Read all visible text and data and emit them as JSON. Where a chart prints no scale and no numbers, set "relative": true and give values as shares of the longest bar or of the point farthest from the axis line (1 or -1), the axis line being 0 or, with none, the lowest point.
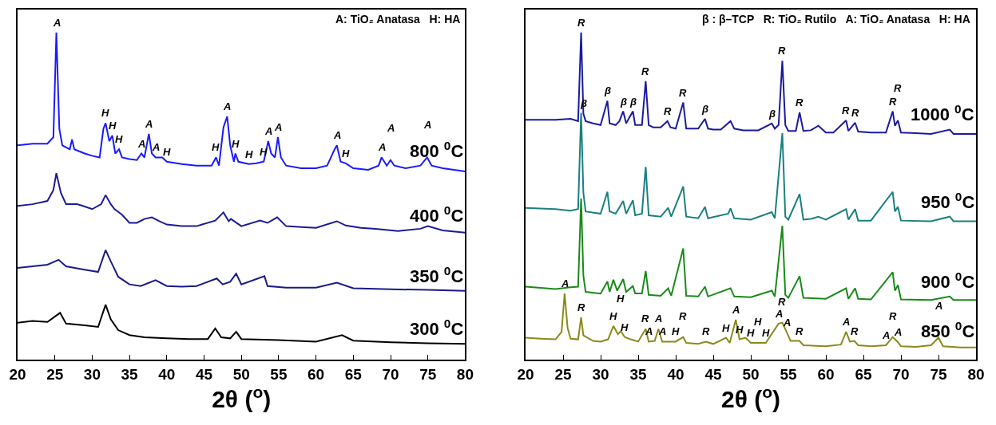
{
  "chart_data": [
    {
      "type": "line",
      "relative": true,
      "xlabel": "2θ ($^{o}$)",
      "xlim": [
        20,
        80
      ],
      "xticks": [
        20,
        25,
        30,
        35,
        40,
        45,
        50,
        55,
        60,
        65,
        70,
        75,
        80
      ],
      "tick_labels": "x",
      "series": [
        {
          "name": "800 $^{0}$C",
          "color": "#1a1aff",
          "x": [
            20,
            22,
            24,
            24.8,
            25.2,
            25.6,
            26,
            27,
            27.3,
            27.6,
            29,
            30,
            31,
            31.5,
            31.8,
            32.3,
            32.7,
            33.1,
            33.6,
            34,
            35,
            36,
            36.6,
            37,
            37.6,
            38,
            38.5,
            39.4,
            40,
            42,
            44,
            46,
            46.6,
            47,
            47.6,
            48.1,
            48.5,
            49,
            49.2,
            49.6,
            51,
            52,
            53,
            53.6,
            54,
            54.5,
            54.9,
            55.3,
            56,
            58,
            60,
            61.5,
            62.5,
            62.8,
            63.3,
            64,
            65,
            67,
            68.4,
            68.8,
            69.5,
            70,
            70.5,
            72,
            74,
            74.9,
            75.5,
            77,
            80
          ],
          "values": [
            0.655,
            0.66,
            0.66,
            0.68,
            1.0,
            0.705,
            0.655,
            0.643,
            0.673,
            0.643,
            0.63,
            0.623,
            0.618,
            0.705,
            0.723,
            0.668,
            0.685,
            0.63,
            0.643,
            0.618,
            0.613,
            0.61,
            0.63,
            0.618,
            0.69,
            0.63,
            0.618,
            0.618,
            0.605,
            0.598,
            0.593,
            0.593,
            0.618,
            0.593,
            0.71,
            0.743,
            0.655,
            0.605,
            0.63,
            0.605,
            0.598,
            0.6,
            0.605,
            0.668,
            0.63,
            0.618,
            0.68,
            0.618,
            0.593,
            0.585,
            0.585,
            0.593,
            0.643,
            0.655,
            0.605,
            0.6,
            0.585,
            0.58,
            0.593,
            0.618,
            0.593,
            0.61,
            0.593,
            0.585,
            0.593,
            0.618,
            0.593,
            0.585,
            0.575
          ]
        },
        {
          "name": "400 $^{0}$C",
          "color": "#1a1a9a",
          "x": [
            20,
            22,
            24,
            24.8,
            25.2,
            25.8,
            26.5,
            28,
            29,
            30,
            31.2,
            31.8,
            32.5,
            33,
            34,
            35,
            36,
            37,
            38,
            39,
            40,
            42,
            44,
            46.5,
            47.6,
            48.3,
            48.6,
            50,
            52.5,
            53.5,
            54.8,
            56,
            58,
            60,
            62.8,
            64,
            66,
            68,
            71,
            74,
            75,
            77,
            80
          ],
          "values": [
            0.47,
            0.475,
            0.485,
            0.518,
            0.57,
            0.51,
            0.475,
            0.475,
            0.468,
            0.46,
            0.475,
            0.503,
            0.475,
            0.46,
            0.443,
            0.418,
            0.418,
            0.43,
            0.435,
            0.423,
            0.413,
            0.408,
            0.408,
            0.425,
            0.45,
            0.423,
            0.43,
            0.408,
            0.425,
            0.418,
            0.435,
            0.408,
            0.405,
            0.403,
            0.423,
            0.41,
            0.403,
            0.4,
            0.393,
            0.4,
            0.408,
            0.395,
            0.388
          ]
        },
        {
          "name": "350 $^{0}$C",
          "color": "#1a1a88",
          "x": [
            20,
            22,
            24,
            25.5,
            26.5,
            29,
            30.8,
            31.8,
            32.5,
            33.5,
            35,
            36.5,
            38.5,
            40,
            42,
            44,
            46.7,
            47.5,
            48.5,
            49.3,
            50,
            53.1,
            53.5,
            56,
            60,
            62.8,
            65,
            70,
            75,
            80
          ],
          "values": [
            0.28,
            0.285,
            0.29,
            0.305,
            0.285,
            0.275,
            0.268,
            0.335,
            0.3,
            0.253,
            0.23,
            0.225,
            0.243,
            0.225,
            0.223,
            0.225,
            0.248,
            0.23,
            0.238,
            0.263,
            0.23,
            0.255,
            0.225,
            0.22,
            0.22,
            0.235,
            0.218,
            0.215,
            0.213,
            0.21
          ]
        },
        {
          "name": "300 $^{0}$C",
          "color": "#000000",
          "x": [
            20,
            22,
            24,
            25.7,
            26.5,
            29,
            30.8,
            31.8,
            32.5,
            33.5,
            35,
            37,
            40,
            43,
            45.5,
            46.5,
            47.3,
            48.5,
            49.3,
            50,
            55,
            60,
            63.5,
            65,
            70,
            75,
            80
          ],
          "values": [
            0.113,
            0.118,
            0.115,
            0.143,
            0.11,
            0.105,
            0.1,
            0.168,
            0.123,
            0.09,
            0.075,
            0.068,
            0.065,
            0.063,
            0.063,
            0.095,
            0.068,
            0.065,
            0.085,
            0.063,
            0.06,
            0.055,
            0.075,
            0.058,
            0.053,
            0.05,
            0.048
          ]
        }
      ],
      "annotations": [
        "A: TiO₂ Anatasa",
        "H: HA",
        {
          "text": "A",
          "x": 25.2,
          "y": 1.0
        },
        {
          "text": "H",
          "x": 31.8,
          "y": 0.723
        },
        {
          "text": "H",
          "x": 32.7,
          "y": 0.685
        },
        {
          "text": "H",
          "x": 33.6,
          "y": 0.643
        },
        {
          "text": "A",
          "x": 36.6,
          "y": 0.63
        },
        {
          "text": "A",
          "x": 37.6,
          "y": 0.69
        },
        {
          "text": "A",
          "x": 38.5,
          "y": 0.618
        },
        {
          "text": "H",
          "x": 40,
          "y": 0.605
        },
        {
          "text": "H",
          "x": 46.6,
          "y": 0.618
        },
        {
          "text": "A",
          "x": 48.1,
          "y": 0.743
        },
        {
          "text": "H",
          "x": 49.2,
          "y": 0.63
        },
        {
          "text": "H",
          "x": 51,
          "y": 0.598
        },
        {
          "text": "H",
          "x": 53,
          "y": 0.605
        },
        {
          "text": "A",
          "x": 53.6,
          "y": 0.668
        },
        {
          "text": "A",
          "x": 54.9,
          "y": 0.68
        },
        {
          "text": "A",
          "x": 62.8,
          "y": 0.655
        },
        {
          "text": "H",
          "x": 64,
          "y": 0.6
        },
        {
          "text": "A",
          "x": 68.8,
          "y": 0.618
        },
        {
          "text": "A",
          "x": 70,
          "y": 0.61
        },
        {
          "text": "A",
          "x": 74.9,
          "y": 0.618
        }
      ]
    },
    {
      "type": "line",
      "relative": true,
      "xlabel": "2θ ($^{o}$)",
      "xlim": [
        20,
        80
      ],
      "xticks": [
        20,
        25,
        30,
        35,
        40,
        45,
        50,
        55,
        60,
        65,
        70,
        75,
        80
      ],
      "tick_labels": "x",
      "series": [
        {
          "name": "1000 $^{0}$C",
          "color": "#1a1aa0",
          "x": [
            20,
            24,
            26,
            27.0,
            27.4,
            27.7,
            28,
            29,
            30,
            30.9,
            31.2,
            32,
            32.5,
            33,
            33.4,
            34.3,
            34.6,
            35.5,
            36,
            36.4,
            37,
            38,
            38.9,
            39.3,
            40,
            41,
            41.4,
            42,
            43,
            43.9,
            44.3,
            45,
            46,
            47.3,
            47.8,
            49,
            51,
            52.8,
            53.2,
            53.7,
            54.2,
            54.6,
            55,
            56,
            56.5,
            57,
            58,
            59,
            60,
            61,
            62.7,
            63,
            63.9,
            64.3,
            66,
            68,
            68.9,
            69.2,
            69.6,
            70,
            72,
            74,
            76.5,
            77,
            80
          ],
          "values": [
            0.733,
            0.733,
            0.736,
            0.729,
            1.0,
            0.752,
            0.729,
            0.722,
            0.717,
            0.791,
            0.722,
            0.717,
            0.729,
            0.759,
            0.722,
            0.759,
            0.717,
            0.717,
            0.851,
            0.717,
            0.71,
            0.71,
            0.729,
            0.71,
            0.706,
            0.786,
            0.706,
            0.706,
            0.706,
            0.736,
            0.706,
            0.703,
            0.703,
            0.729,
            0.706,
            0.701,
            0.701,
            0.722,
            0.706,
            0.717,
            0.913,
            0.717,
            0.699,
            0.699,
            0.756,
            0.699,
            0.701,
            0.715,
            0.694,
            0.694,
            0.731,
            0.699,
            0.724,
            0.697,
            0.694,
            0.694,
            0.759,
            0.715,
            0.731,
            0.694,
            0.692,
            0.69,
            0.703,
            0.69,
            0.69
          ]
        },
        {
          "name": "950 $^{0}$C",
          "color": "#1a8080",
          "x": [
            20,
            24,
            26,
            27,
            27.4,
            27.7,
            28,
            30,
            30.9,
            31.2,
            32,
            33,
            33.4,
            34.3,
            34.6,
            35.5,
            36,
            36.4,
            38,
            39,
            39.4,
            41,
            41.4,
            43,
            43.9,
            44.3,
            47,
            47.3,
            47.8,
            50,
            52.8,
            53.2,
            54.2,
            54.6,
            55,
            56.5,
            57,
            58,
            59,
            60,
            62.7,
            63,
            63.9,
            64.3,
            66,
            68.9,
            69.2,
            69.6,
            70,
            74,
            76.5,
            77,
            80
          ],
          "values": [
            0.464,
            0.46,
            0.455,
            0.46,
            0.754,
            0.51,
            0.453,
            0.446,
            0.513,
            0.453,
            0.446,
            0.485,
            0.446,
            0.487,
            0.441,
            0.446,
            0.589,
            0.441,
            0.437,
            0.464,
            0.437,
            0.529,
            0.437,
            0.432,
            0.467,
            0.432,
            0.446,
            0.462,
            0.432,
            0.428,
            0.451,
            0.432,
            0.692,
            0.437,
            0.428,
            0.506,
            0.428,
            0.43,
            0.437,
            0.428,
            0.46,
            0.428,
            0.46,
            0.425,
            0.425,
            0.513,
            0.453,
            0.467,
            0.425,
            0.423,
            0.437,
            0.423,
            0.423
          ]
        },
        {
          "name": "900 $^{0}$C",
          "color": "#1a8a1a",
          "x": [
            20,
            24,
            26,
            27,
            27.4,
            27.7,
            28,
            30,
            30.9,
            31.2,
            31.7,
            32.2,
            33,
            33.4,
            34.3,
            34.6,
            35.5,
            36,
            36.4,
            38,
            39,
            39.4,
            41,
            41.4,
            43,
            43.9,
            44.3,
            47.3,
            47.8,
            50,
            52.8,
            53.2,
            54.2,
            54.6,
            55,
            56.5,
            57,
            60,
            62.7,
            63,
            63.9,
            64.3,
            66,
            68.9,
            69.2,
            69.6,
            70,
            74,
            76.5,
            77,
            80
          ],
          "values": [
            0.223,
            0.216,
            0.221,
            0.223,
            0.492,
            0.257,
            0.207,
            0.202,
            0.239,
            0.207,
            0.244,
            0.211,
            0.246,
            0.207,
            0.225,
            0.202,
            0.202,
            0.271,
            0.198,
            0.195,
            0.218,
            0.195,
            0.34,
            0.195,
            0.193,
            0.223,
            0.193,
            0.218,
            0.193,
            0.191,
            0.211,
            0.193,
            0.409,
            0.198,
            0.189,
            0.255,
            0.189,
            0.186,
            0.218,
            0.186,
            0.218,
            0.186,
            0.184,
            0.267,
            0.211,
            0.228,
            0.184,
            0.182,
            0.193,
            0.182,
            0.182
          ]
        },
        {
          "name": "850 $^{0}$C",
          "color": "#8a8a1a",
          "x": [
            20,
            22,
            24,
            24.8,
            25.2,
            25.6,
            26,
            27,
            27.4,
            27.7,
            29,
            30,
            31,
            31.7,
            32.3,
            32.7,
            33.2,
            34,
            35,
            36,
            36.4,
            37.2,
            37.7,
            38.2,
            40,
            41,
            41.4,
            43,
            44,
            45,
            46.7,
            47.2,
            48,
            48.5,
            49.3,
            50,
            51,
            52,
            53.7,
            54.2,
            54.8,
            55.3,
            56.5,
            57,
            60,
            62,
            62.7,
            63.2,
            63.8,
            64.3,
            66,
            68,
            68.9,
            69.6,
            70,
            72,
            74,
            75,
            75.6,
            78,
            80
          ],
          "values": [
            0.067,
            0.064,
            0.062,
            0.085,
            0.202,
            0.097,
            0.064,
            0.062,
            0.129,
            0.074,
            0.057,
            0.055,
            0.062,
            0.103,
            0.078,
            0.087,
            0.069,
            0.062,
            0.055,
            0.094,
            0.055,
            0.057,
            0.094,
            0.055,
            0.055,
            0.069,
            0.051,
            0.048,
            0.055,
            0.048,
            0.067,
            0.051,
            0.122,
            0.062,
            0.067,
            0.051,
            0.051,
            0.051,
            0.11,
            0.113,
            0.083,
            0.057,
            0.057,
            0.044,
            0.041,
            0.046,
            0.085,
            0.055,
            0.057,
            0.044,
            0.041,
            0.044,
            0.069,
            0.053,
            0.041,
            0.039,
            0.044,
            0.067,
            0.041,
            0.037,
            0.037
          ]
        }
      ],
      "annotations": [
        "β : β–TCP",
        "R: TiO₂ Rutilo",
        "A: TiO₂ Anatasa",
        "H: HA",
        {
          "text": "R",
          "x": 27.4,
          "y": 1.0
        },
        {
          "text": "β",
          "x": 27.7,
          "y": 0.752
        },
        {
          "text": "β",
          "x": 30.9,
          "y": 0.791
        },
        {
          "text": "β",
          "x": 33,
          "y": 0.759
        },
        {
          "text": "β",
          "x": 34.3,
          "y": 0.759
        },
        {
          "text": "R",
          "x": 36,
          "y": 0.851
        },
        {
          "text": "R",
          "x": 38.9,
          "y": 0.729
        },
        {
          "text": "R",
          "x": 41,
          "y": 0.786
        },
        {
          "text": "β",
          "x": 43.9,
          "y": 0.736
        },
        {
          "text": "β",
          "x": 52.8,
          "y": 0.722
        },
        {
          "text": "R",
          "x": 54.2,
          "y": 0.913
        },
        {
          "text": "R",
          "x": 56.5,
          "y": 0.756
        },
        {
          "text": "R",
          "x": 62.7,
          "y": 0.731
        },
        {
          "text": "R",
          "x": 63.9,
          "y": 0.724
        },
        {
          "text": "R",
          "x": 68.9,
          "y": 0.759
        },
        {
          "text": "R",
          "x": 69.6,
          "y": 0.731
        },
        {
          "text": "A",
          "x": 25.2,
          "y": 0.202
        },
        {
          "text": "R",
          "x": 27.4,
          "y": 0.129
        },
        {
          "text": "H",
          "x": 31.7,
          "y": 0.103
        },
        {
          "text": "H",
          "x": 32.7,
          "y": 0.087
        },
        {
          "text": "H",
          "x": 33.2,
          "y": 0.069
        },
        {
          "text": "R",
          "x": 36,
          "y": 0.094
        },
        {
          "text": "A",
          "x": 36.4,
          "y": 0.055
        },
        {
          "text": "A",
          "x": 37.7,
          "y": 0.094
        },
        {
          "text": "A",
          "x": 38.2,
          "y": 0.055
        },
        {
          "text": "H",
          "x": 40,
          "y": 0.055
        },
        {
          "text": "R",
          "x": 41,
          "y": 0.069
        },
        {
          "text": "R",
          "x": 44,
          "y": 0.055
        },
        {
          "text": "H",
          "x": 46.7,
          "y": 0.067
        },
        {
          "text": "A",
          "x": 48,
          "y": 0.122
        },
        {
          "text": "H",
          "x": 48.5,
          "y": 0.062
        },
        {
          "text": "H",
          "x": 50,
          "y": 0.051
        },
        {
          "text": "H",
          "x": 51,
          "y": 0.051
        },
        {
          "text": "H",
          "x": 52,
          "y": 0.051
        },
        {
          "text": "A",
          "x": 53.7,
          "y": 0.11
        },
        {
          "text": "R",
          "x": 54.2,
          "y": 0.113
        },
        {
          "text": "A",
          "x": 54.8,
          "y": 0.083
        },
        {
          "text": "R",
          "x": 56.5,
          "y": 0.057
        },
        {
          "text": "A",
          "x": 62.7,
          "y": 0.085
        },
        {
          "text": "R",
          "x": 63.8,
          "y": 0.057
        },
        {
          "text": "A",
          "x": 68,
          "y": 0.044
        },
        {
          "text": "R",
          "x": 68.9,
          "y": 0.069
        },
        {
          "text": "A",
          "x": 69.6,
          "y": 0.053
        },
        {
          "text": "A",
          "x": 75,
          "y": 0.067
        }
      ]
    }
  ]
}
